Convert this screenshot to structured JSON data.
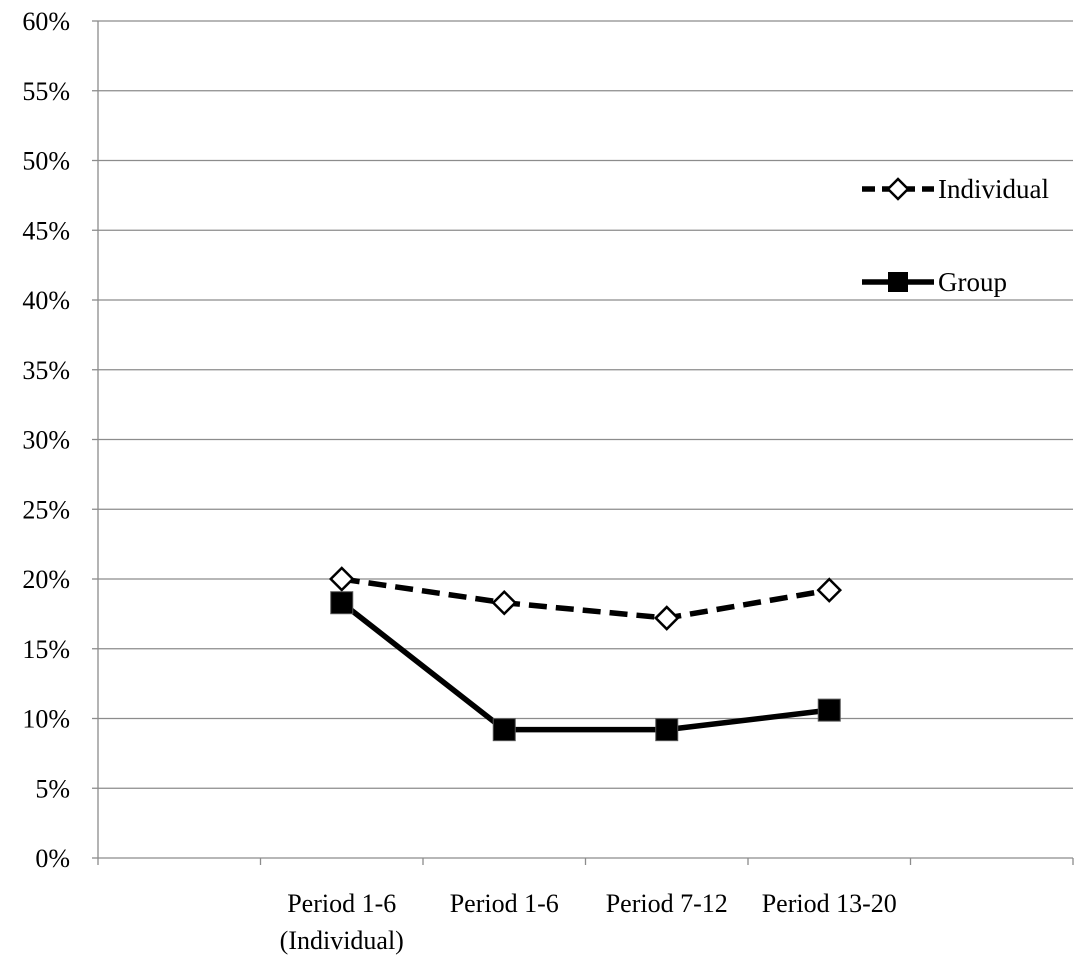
{
  "chart_data": {
    "type": "line",
    "categories": [
      [
        "",
        ""
      ],
      [
        "Period 1-6",
        "(Individual)"
      ],
      [
        "Period 1-6",
        ""
      ],
      [
        "Period 7-12",
        ""
      ],
      [
        "Period 13-20",
        ""
      ],
      [
        "",
        ""
      ]
    ],
    "yticks": [
      "0%",
      "5%",
      "10%",
      "15%",
      "20%",
      "25%",
      "30%",
      "35%",
      "40%",
      "45%",
      "50%",
      "55%",
      "60%"
    ],
    "ylim": [
      0,
      60
    ],
    "grid": true,
    "legend_position": "right",
    "series": [
      {
        "name": "Individual",
        "style": "dashed",
        "marker": "diamond-open",
        "color": "#000000",
        "values": [
          null,
          20.0,
          18.3,
          17.2,
          19.2,
          null
        ]
      },
      {
        "name": "Group",
        "style": "solid",
        "marker": "square-filled",
        "color": "#000000",
        "values": [
          null,
          18.3,
          9.2,
          9.2,
          10.6,
          null
        ]
      }
    ]
  }
}
